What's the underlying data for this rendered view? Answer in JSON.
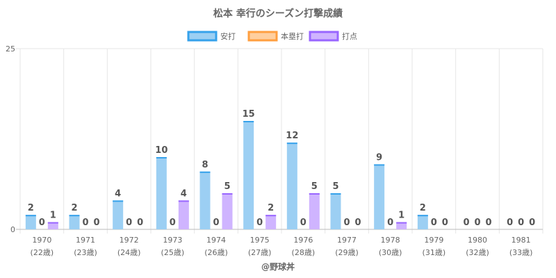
{
  "chart_data": {
    "type": "bar",
    "title": "松本 幸行のシーズン打撃成績",
    "categories": [
      "1970",
      "1971",
      "1972",
      "1973",
      "1974",
      "1975",
      "1976",
      "1977",
      "1978",
      "1979",
      "1980",
      "1981"
    ],
    "category_sublabels": [
      "(22歳)",
      "(23歳)",
      "(24歳)",
      "(25歳)",
      "(26歳)",
      "(27歳)",
      "(28歳)",
      "(29歳)",
      "(30歳)",
      "(31歳)",
      "(32歳)",
      "(33歳)"
    ],
    "series": [
      {
        "name": "安打",
        "values": [
          2,
          2,
          4,
          10,
          8,
          15,
          12,
          5,
          9,
          2,
          0,
          0
        ],
        "color": "#9ccff3",
        "border": "#36a2eb"
      },
      {
        "name": "本塁打",
        "values": [
          0,
          0,
          0,
          0,
          0,
          0,
          0,
          0,
          0,
          0,
          0,
          0
        ],
        "color": "#ffcf9f",
        "border": "#ff9f40"
      },
      {
        "name": "打点",
        "values": [
          1,
          0,
          0,
          4,
          5,
          2,
          5,
          0,
          1,
          0,
          0,
          0
        ],
        "color": "#cfb4ff",
        "border": "#9966ff"
      }
    ],
    "yticks": [
      0,
      25
    ],
    "ylim": [
      0,
      25
    ],
    "legend_position": "top",
    "grid": true,
    "footer": "@野球丼"
  }
}
